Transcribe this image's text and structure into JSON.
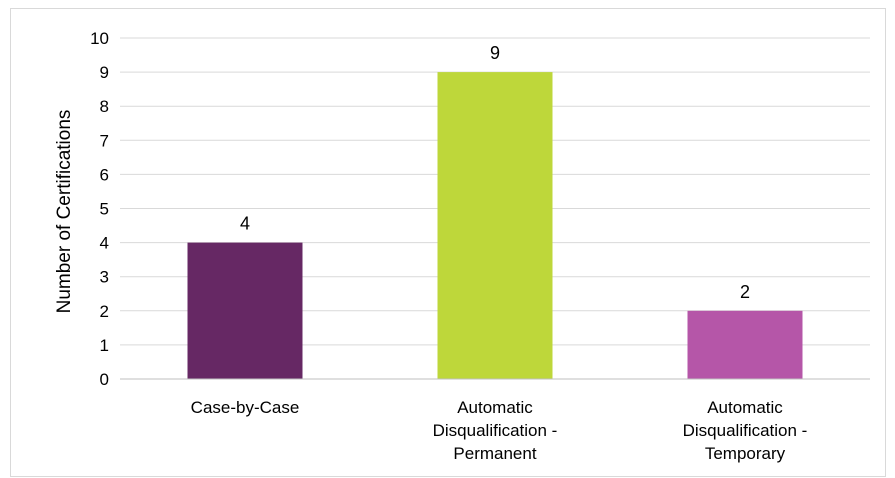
{
  "chart_data": {
    "type": "bar",
    "title": "",
    "xlabel": "",
    "ylabel": "Number of Certifications",
    "ylim": [
      0,
      10
    ],
    "yticks": [
      0,
      1,
      2,
      3,
      4,
      5,
      6,
      7,
      8,
      9,
      10
    ],
    "grid": true,
    "legend": "none",
    "categories": [
      [
        "Case-by-Case"
      ],
      [
        "Automatic",
        "Disqualification -",
        "Permanent"
      ],
      [
        "Automatic",
        "Disqualification -",
        "Temporary"
      ]
    ],
    "values": [
      4,
      9,
      2
    ],
    "data_labels": [
      "4",
      "9",
      "2"
    ],
    "colors": [
      "#662864",
      "#bed73a",
      "#b556a8"
    ],
    "gridline_color": "#d9d9d9",
    "axis_color": "#bfbfbf"
  }
}
